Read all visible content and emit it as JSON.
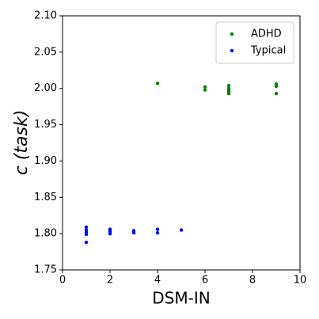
{
  "chart_data": {
    "type": "scatter",
    "xlabel": "DSM-IN",
    "ylabel": "c (task)",
    "xlim": [
      0,
      10
    ],
    "ylim": [
      1.75,
      2.1
    ],
    "xticks": [
      0,
      2,
      4,
      6,
      8,
      10
    ],
    "yticks": [
      1.75,
      {
        "value": 1.8,
        "label": "1.80"
      },
      1.85,
      {
        "value": 1.9,
        "label": "1.90"
      },
      1.95,
      {
        "value": 2.0,
        "label": "2.00"
      },
      2.05,
      {
        "value": 2.1,
        "label": "2.10"
      }
    ],
    "legend": "upper right",
    "series": [
      {
        "name": "ADHD",
        "color": "#008000",
        "x": [
          4,
          6,
          6,
          7,
          7,
          7,
          7,
          7,
          9,
          9,
          9
        ],
        "values": [
          2.007,
          2.002,
          1.998,
          2.004,
          2.0,
          1.998,
          1.996,
          1.993,
          2.006,
          2.003,
          1.993
        ]
      },
      {
        "name": "Typical",
        "color": "#0000ff",
        "x": [
          1,
          1,
          1,
          1,
          1,
          2,
          2,
          2,
          3,
          3,
          4,
          4,
          5
        ],
        "values": [
          1.809,
          1.805,
          1.802,
          1.799,
          1.788,
          1.806,
          1.803,
          1.8,
          1.804,
          1.801,
          1.806,
          1.801,
          1.805
        ]
      }
    ]
  }
}
